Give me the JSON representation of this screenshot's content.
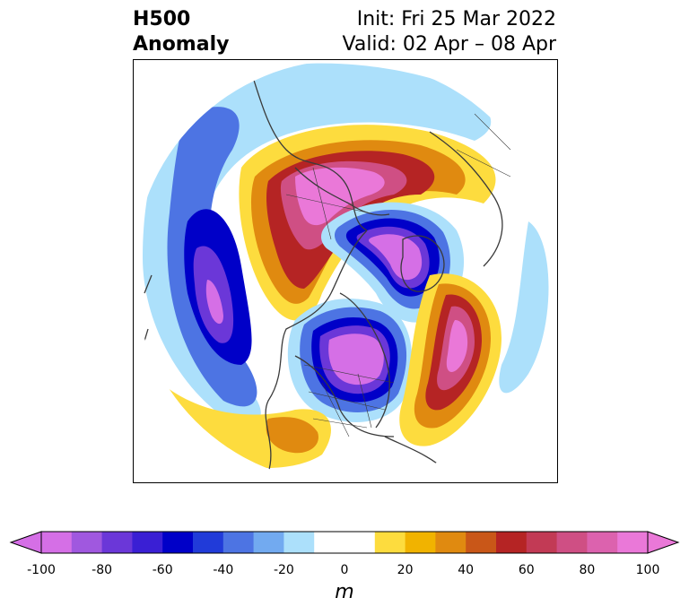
{
  "header": {
    "title_line1": "H500",
    "title_line2": "Anomaly",
    "init_text": "Init: Fri 25 Mar 2022",
    "valid_text": "Valid: 02 Apr – 08 Apr"
  },
  "colorbar": {
    "unit": "m",
    "ticks": [
      "-100",
      "-80",
      "-60",
      "-40",
      "-20",
      "0",
      "20",
      "40",
      "60",
      "80",
      "100"
    ],
    "bins": [
      "#d56fe6",
      "#a058df",
      "#6b37d8",
      "#3a1fd4",
      "#0000c8",
      "#213bd9",
      "#4d74e3",
      "#72aaf0",
      "#ace0fb",
      "#ffffff",
      "#ffffff",
      "#fddc3e",
      "#f1b300",
      "#e08a10",
      "#c95718",
      "#b52424",
      "#c23a55",
      "#cf4f84",
      "#dc62ae",
      "#ea78d8"
    ],
    "extend_low": "#d56fe6",
    "extend_high": "#ea78d8"
  },
  "anomaly_colors": {
    "neg_light": "#ace0fb",
    "neg_mid": "#4d74e3",
    "neg_strong": "#0000c8",
    "neg_deep": "#6b37d8",
    "neg_core": "#d56fe6",
    "pos_light": "#fddc3e",
    "pos_mid": "#e08a10",
    "pos_strong": "#b52424",
    "pos_deep": "#cf4f84",
    "pos_core": "#ea78d8",
    "coastline": "#3a3a3a"
  }
}
